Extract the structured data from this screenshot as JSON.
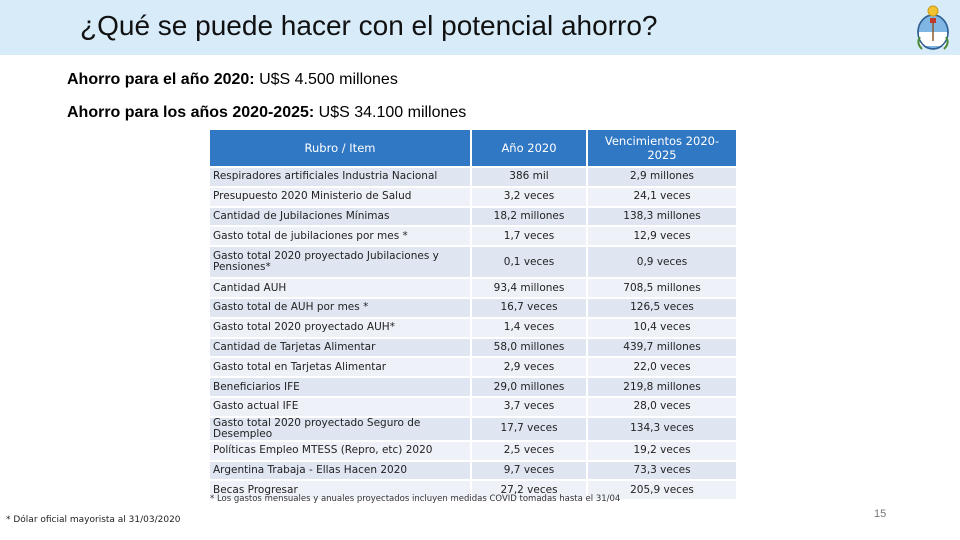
{
  "slide": {
    "title": "¿Qué se puede hacer con el potencial ahorro?",
    "line1_label": "Ahorro para el año 2020:",
    "line1_value": " U$S 4.500 millones",
    "line2_label": "Ahorro para los años 2020-2025:",
    "line2_value": " U$S 34.100 millones",
    "page_number": "15"
  },
  "table": {
    "headers": [
      "Rubro / Item",
      "Año 2020",
      "Vencimientos 2020-2025"
    ],
    "rows": [
      [
        "Respiradores artificiales Industria Nacional",
        "386 mil",
        "2,9 millones"
      ],
      [
        "Presupuesto 2020 Ministerio de Salud",
        "3,2 veces",
        "24,1 veces"
      ],
      [
        "Cantidad de Jubilaciones Mínimas",
        "18,2 millones",
        "138,3 millones"
      ],
      [
        "Gasto total de jubilaciones por mes *",
        "1,7 veces",
        "12,9 veces"
      ],
      [
        "Gasto total 2020 proyectado Jubilaciones y Pensiones*",
        "0,1 veces",
        "0,9 veces"
      ],
      [
        "Cantidad AUH",
        "93,4 millones",
        "708,5 millones"
      ],
      [
        "Gasto total de AUH por mes *",
        "16,7 veces",
        "126,5 veces"
      ],
      [
        "Gasto total 2020 proyectado AUH*",
        "1,4 veces",
        "10,4 veces"
      ],
      [
        "Cantidad de Tarjetas Alimentar",
        "58,0 millones",
        "439,7 millones"
      ],
      [
        "Gasto total en Tarjetas Alimentar",
        "2,9 veces",
        "22,0 veces"
      ],
      [
        "Beneficiarios IFE",
        "29,0 millones",
        "219,8 millones"
      ],
      [
        "Gasto actual IFE",
        "3,7 veces",
        "28,0 veces"
      ],
      [
        "Gasto total 2020 proyectado Seguro de Desempleo",
        "17,7 veces",
        "134,3 veces"
      ],
      [
        "Políticas Empleo MTESS (Repro, etc) 2020",
        "2,5 veces",
        "19,2 veces"
      ],
      [
        "Argentina Trabaja - Ellas Hacen 2020",
        "9,7 veces",
        "73,3 veces"
      ],
      [
        "Becas Progresar",
        "27,2 veces",
        "205,9 veces"
      ]
    ],
    "footnote": "* Los gastos mensuales y anuales proyectados incluyen medidas COVID tomadas hasta el 31/04"
  },
  "source_note": "* Dólar oficial mayorista al 31/03/2020",
  "colors": {
    "title_bar": "#d7ebf9",
    "table_header": "#3178c4",
    "row_band_a": "#dfe6f2",
    "row_band_b": "#eef1f8"
  },
  "icons": [
    "argentina-coat-of-arms-icon"
  ]
}
